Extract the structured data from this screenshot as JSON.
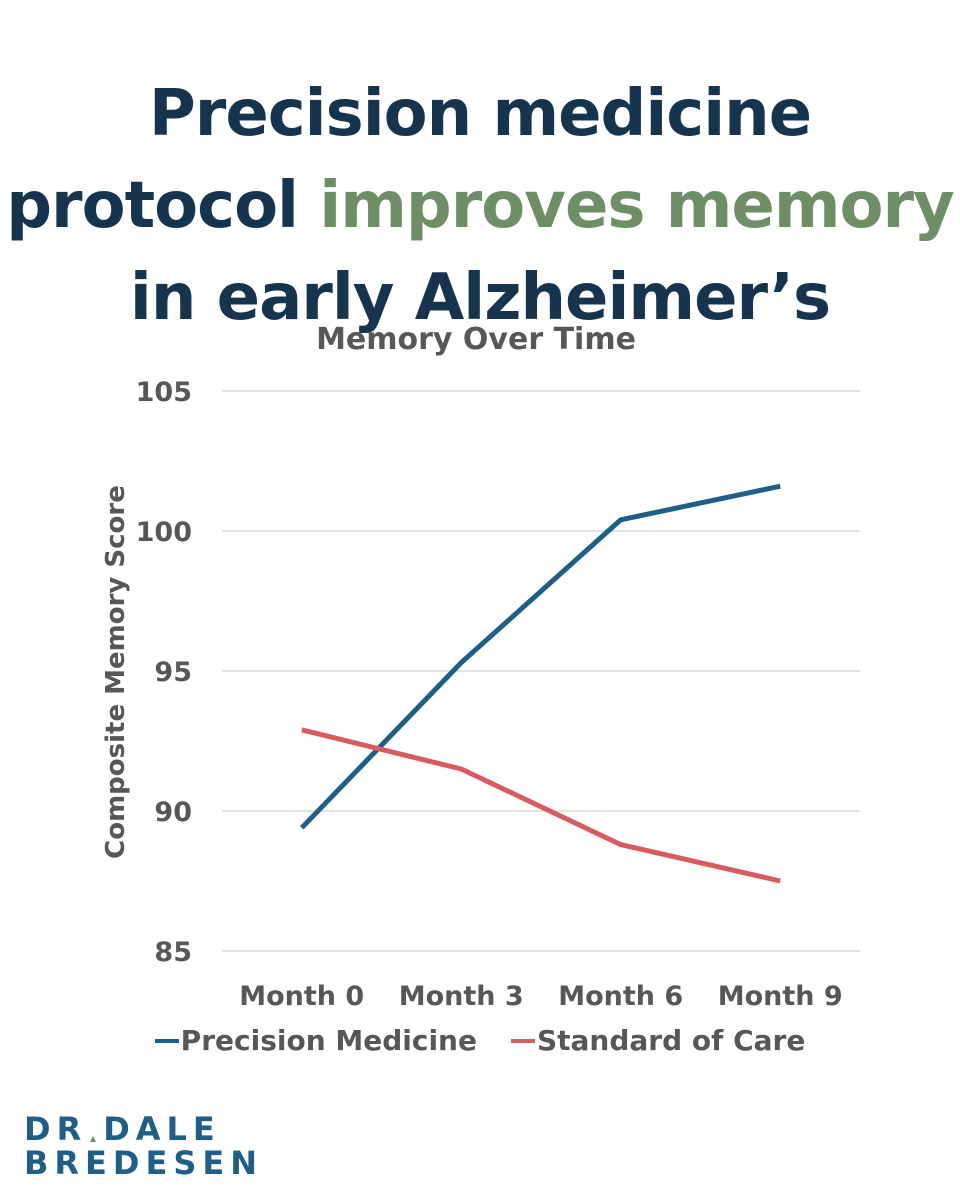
{
  "headline": {
    "line1": "Precision medicine",
    "line2_start": "protocol ",
    "line2_accent": "improves memory",
    "line3": "in early Alzheimer’s"
  },
  "colors": {
    "headline": "#16344e",
    "accent": "#6e8f66",
    "text": "#575757",
    "grid": "#d9d9d9",
    "precision": "#1f5f87",
    "standard": "#d95a5f",
    "logo": "#1f5f87"
  },
  "chart_data": {
    "type": "line",
    "title": "Memory Over Time",
    "xlabel": "",
    "ylabel": "Composite Memory Score",
    "categories": [
      "Month 0",
      "Month 3",
      "Month 6",
      "Month 9"
    ],
    "series": [
      {
        "name": "Precision Medicine",
        "values": [
          89.4,
          95.3,
          100.4,
          101.6
        ]
      },
      {
        "name": "Standard of Care",
        "values": [
          92.9,
          91.5,
          88.8,
          87.5
        ]
      }
    ],
    "ylim": [
      85,
      105
    ],
    "yticks": [
      85,
      90,
      95,
      100,
      105
    ],
    "grid": true,
    "legend": "bottom"
  },
  "logo": {
    "line1_a": "DR",
    "line1_b": "DALE",
    "line2": "BREDESEN"
  }
}
